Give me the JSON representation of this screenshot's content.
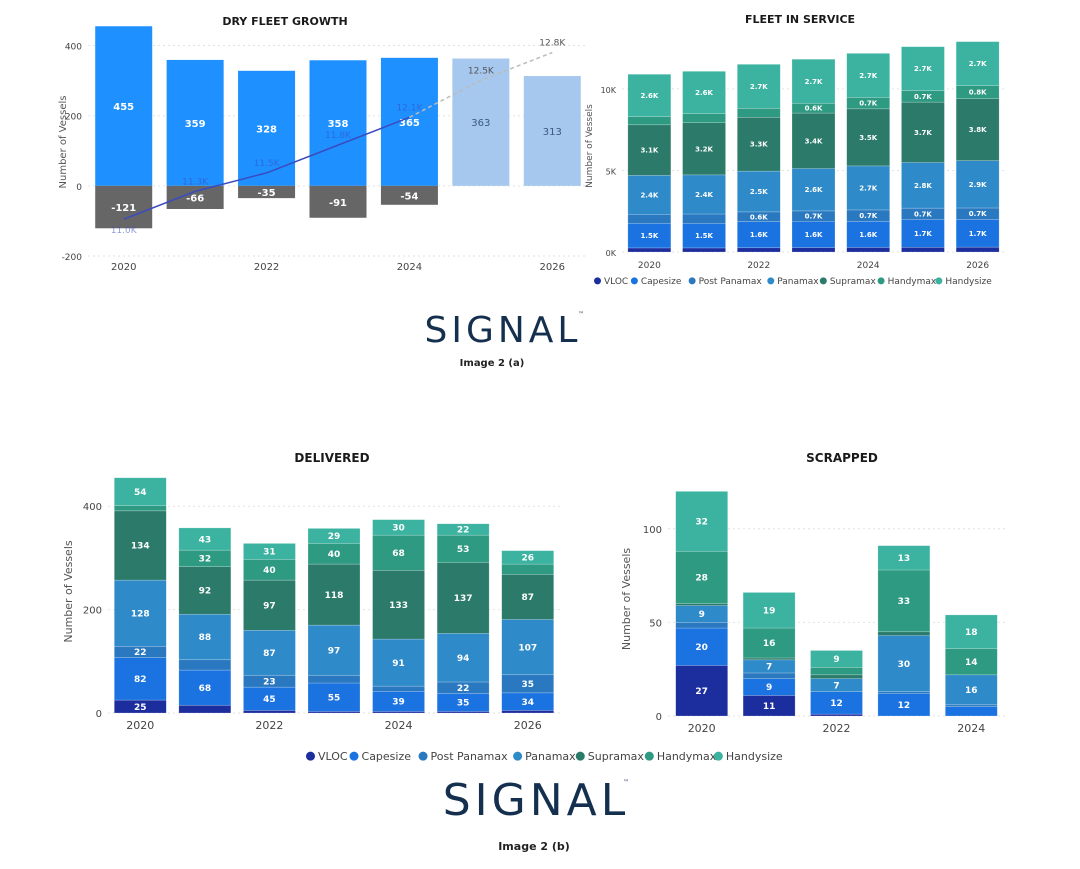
{
  "colors": {
    "VLOC": "#1c2d9e",
    "Capesize": "#1a73e0",
    "Post Panamax": "#2a78c0",
    "Panamax": "#2f8ac9",
    "Supramax": "#2b7a6a",
    "Handymax": "#2f9a82",
    "Handysize": "#3bb3a0",
    "growth_actual": "#1e90ff",
    "growth_forecast": "#a7c8ee",
    "growth_negative": "#666666",
    "line": "#3a4bc0"
  },
  "legend_labels": [
    "VLOC",
    "Capesize",
    "Post Panamax",
    "Panamax",
    "Supramax",
    "Handymax",
    "Handysize"
  ],
  "captions": {
    "a": "Image 2 (a)",
    "b": "Image 2 (b)"
  },
  "logo": {
    "text_a": "SIGNAL",
    "text_b": "SIGNAL",
    "tm": "™"
  },
  "chart_data": [
    {
      "id": "growth",
      "type": "bar",
      "title": "DRY FLEET GROWTH",
      "ylabel": "Number of Vessels",
      "ylim": [
        -200,
        450
      ],
      "yticks": [
        -200,
        0,
        200,
        400
      ],
      "x": [
        2020,
        2021,
        2022,
        2023,
        2024,
        2025,
        2026
      ],
      "xticks": [
        "2020",
        "2022",
        "2024",
        "2026"
      ],
      "series": [
        {
          "name": "Delivered",
          "values": [
            455,
            359,
            328,
            358,
            365,
            363,
            313
          ],
          "forecast_from": 2025
        },
        {
          "name": "Scrapped",
          "values": [
            -121,
            -66,
            -35,
            -91,
            -54,
            null,
            null
          ]
        }
      ],
      "line": {
        "values_k": [
          11.0,
          11.3,
          11.5,
          11.8,
          12.1,
          12.5,
          12.8
        ],
        "labels": [
          "11.0K",
          "11.3K",
          "11.5K",
          "11.8K",
          "12.1K",
          "12.5K",
          "12.8K"
        ]
      }
    },
    {
      "id": "service",
      "type": "bar",
      "stacked": true,
      "title": "FLEET IN SERVICE",
      "ylabel": "Number of Vessels",
      "ylim": [
        0,
        13000
      ],
      "yticks": [
        0,
        5000,
        10000
      ],
      "ytick_labels": [
        "0K",
        "5K",
        "10K"
      ],
      "x": [
        2020,
        2021,
        2022,
        2023,
        2024,
        2025,
        2026
      ],
      "xticks": [
        "2020",
        "2022",
        "2024",
        "2026"
      ],
      "series": [
        {
          "name": "VLOC",
          "values": [
            250,
            250,
            260,
            270,
            280,
            290,
            300
          ],
          "labels": [
            "",
            "",
            "",
            "",
            "",
            "",
            ""
          ]
        },
        {
          "name": "Capesize",
          "values": [
            1500,
            1500,
            1600,
            1600,
            1600,
            1700,
            1700
          ],
          "labels": [
            "1.5K",
            "1.5K",
            "1.6K",
            "1.6K",
            "1.6K",
            "1.7K",
            "1.7K"
          ]
        },
        {
          "name": "Post Panamax",
          "values": [
            550,
            580,
            600,
            650,
            700,
            700,
            700
          ],
          "labels": [
            "",
            "",
            "0.6K",
            "0.7K",
            "0.7K",
            "0.7K",
            "0.7K"
          ]
        },
        {
          "name": "Panamax",
          "values": [
            2400,
            2400,
            2500,
            2600,
            2700,
            2800,
            2900
          ],
          "labels": [
            "2.4K",
            "2.4K",
            "2.5K",
            "2.6K",
            "2.7K",
            "2.8K",
            "2.9K"
          ]
        },
        {
          "name": "Supramax",
          "values": [
            3100,
            3200,
            3300,
            3400,
            3500,
            3700,
            3800
          ],
          "labels": [
            "3.1K",
            "3.2K",
            "3.3K",
            "3.4K",
            "3.5K",
            "3.7K",
            "3.8K"
          ]
        },
        {
          "name": "Handymax",
          "values": [
            500,
            550,
            550,
            600,
            700,
            700,
            800
          ],
          "labels": [
            "",
            "",
            "",
            "0.6K",
            "0.7K",
            "0.7K",
            "0.8K"
          ]
        },
        {
          "name": "Handysize",
          "values": [
            2600,
            2600,
            2700,
            2700,
            2700,
            2700,
            2700
          ],
          "labels": [
            "2.6K",
            "2.6K",
            "2.7K",
            "2.7K",
            "2.7K",
            "2.7K",
            "2.7K"
          ]
        }
      ]
    },
    {
      "id": "delivered",
      "type": "bar",
      "stacked": true,
      "title": "DELIVERED",
      "ylabel": "Number of Vessels",
      "ylim": [
        0,
        470
      ],
      "yticks": [
        0,
        200,
        400
      ],
      "x": [
        2020,
        2021,
        2022,
        2023,
        2024,
        2025,
        2026
      ],
      "xticks": [
        "2020",
        "2022",
        "2024",
        "2026"
      ],
      "series": [
        {
          "name": "VLOC",
          "values": [
            25,
            15,
            5,
            3,
            3,
            3,
            5
          ],
          "labels": [
            "25",
            "",
            "",
            "",
            "",
            "",
            ""
          ]
        },
        {
          "name": "Capesize",
          "values": [
            82,
            68,
            45,
            55,
            39,
            35,
            34
          ],
          "labels": [
            "82",
            "68",
            "45",
            "55",
            "39",
            "35",
            "34"
          ]
        },
        {
          "name": "Post Panamax",
          "values": [
            22,
            20,
            23,
            15,
            10,
            22,
            35
          ],
          "labels": [
            "22",
            "",
            "23",
            "",
            "",
            "22",
            "35"
          ]
        },
        {
          "name": "Panamax",
          "values": [
            128,
            88,
            87,
            97,
            91,
            94,
            107
          ],
          "labels": [
            "128",
            "88",
            "87",
            "97",
            "91",
            "94",
            "107"
          ]
        },
        {
          "name": "Supramax",
          "values": [
            134,
            92,
            97,
            118,
            133,
            137,
            87
          ],
          "labels": [
            "134",
            "92",
            "97",
            "118",
            "133",
            "137",
            "87"
          ]
        },
        {
          "name": "Handymax",
          "values": [
            10,
            32,
            40,
            40,
            68,
            53,
            20
          ],
          "labels": [
            "",
            "32",
            "40",
            "40",
            "68",
            "53",
            ""
          ]
        },
        {
          "name": "Handysize",
          "values": [
            54,
            43,
            31,
            29,
            30,
            22,
            26
          ],
          "labels": [
            "54",
            "43",
            "31",
            "29",
            "30",
            "22",
            "26"
          ]
        }
      ]
    },
    {
      "id": "scrapped",
      "type": "bar",
      "stacked": true,
      "title": "SCRAPPED",
      "ylabel": "Number of Vessels",
      "ylim": [
        0,
        125
      ],
      "yticks": [
        0,
        50,
        100
      ],
      "x": [
        2020,
        2021,
        2022,
        2023,
        2024
      ],
      "xticks": [
        "2020",
        "2022",
        "2024"
      ],
      "series": [
        {
          "name": "VLOC",
          "values": [
            27,
            11,
            1,
            0,
            0
          ],
          "labels": [
            "27",
            "11",
            "",
            "",
            ""
          ]
        },
        {
          "name": "Capesize",
          "values": [
            20,
            9,
            12,
            12,
            5
          ],
          "labels": [
            "20",
            "9",
            "12",
            "12",
            ""
          ]
        },
        {
          "name": "Post Panamax",
          "values": [
            3,
            3,
            0,
            1,
            1
          ],
          "labels": [
            "",
            "",
            "",
            "",
            ""
          ]
        },
        {
          "name": "Panamax",
          "values": [
            9,
            7,
            7,
            30,
            16
          ],
          "labels": [
            "9",
            "7",
            "7",
            "30",
            "16"
          ]
        },
        {
          "name": "Supramax",
          "values": [
            1,
            1,
            2,
            2,
            0
          ],
          "labels": [
            "",
            "",
            "",
            "",
            ""
          ]
        },
        {
          "name": "Handymax",
          "values": [
            28,
            16,
            4,
            33,
            14
          ],
          "labels": [
            "28",
            "16",
            "",
            "33",
            "14"
          ]
        },
        {
          "name": "Handysize",
          "values": [
            32,
            19,
            9,
            13,
            18
          ],
          "labels": [
            "32",
            "19",
            "9",
            "13",
            "18"
          ]
        }
      ]
    }
  ]
}
